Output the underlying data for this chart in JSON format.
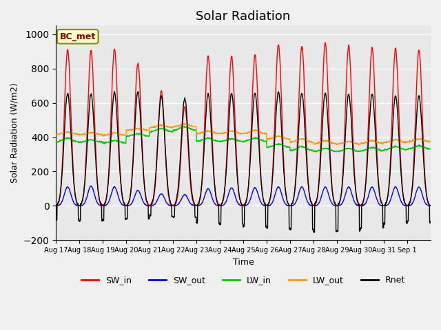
{
  "title": "Solar Radiation",
  "xlabel": "Time",
  "ylabel": "Solar Radiation (W/m2)",
  "ylim": [
    -200,
    1050
  ],
  "n_days": 16,
  "tick_labels": [
    "Aug 17",
    "Aug 18",
    "Aug 19",
    "Aug 20",
    "Aug 21",
    "Aug 22",
    "Aug 23",
    "Aug 24",
    "Aug 25",
    "Aug 26",
    "Aug 27",
    "Aug 28",
    "Aug 29",
    "Aug 30",
    "Aug 31",
    "Sep 1"
  ],
  "legend_labels": [
    "SW_in",
    "SW_out",
    "LW_in",
    "LW_out",
    "Rnet"
  ],
  "legend_colors": [
    "#ff0000",
    "#0000ff",
    "#00cc00",
    "#ff9900",
    "#000000"
  ],
  "station_label": "BC_met",
  "sw_in_peaks": [
    910,
    905,
    910,
    830,
    670,
    580,
    870,
    870,
    880,
    940,
    930,
    950,
    930,
    920,
    915,
    910
  ],
  "sw_out_peaks": [
    110,
    115,
    110,
    90,
    70,
    65,
    100,
    105,
    105,
    110,
    110,
    110,
    110,
    110,
    110,
    110
  ],
  "lw_in_day": [
    395,
    385,
    380,
    420,
    450,
    460,
    395,
    390,
    395,
    360,
    345,
    335,
    335,
    340,
    345,
    350
  ],
  "lw_in_night": [
    370,
    370,
    365,
    405,
    430,
    440,
    375,
    375,
    375,
    340,
    320,
    315,
    315,
    320,
    325,
    330
  ],
  "lw_out_day": [
    430,
    425,
    425,
    450,
    470,
    475,
    435,
    435,
    440,
    405,
    390,
    380,
    375,
    380,
    385,
    390
  ],
  "lw_out_night": [
    415,
    415,
    410,
    440,
    455,
    460,
    420,
    420,
    420,
    388,
    370,
    360,
    358,
    363,
    368,
    373
  ],
  "rnet_peaks": [
    655,
    650,
    660,
    665,
    640,
    625,
    650,
    655,
    660,
    665,
    655,
    655,
    650,
    650,
    640,
    640
  ],
  "rnet_night": [
    -85,
    -90,
    -80,
    -75,
    -60,
    -65,
    -100,
    -105,
    -120,
    -130,
    -135,
    -150,
    -145,
    -130,
    -100,
    -90
  ],
  "background_color": "#e8e8e8",
  "grid_color": "#ffffff",
  "title_fontsize": 13
}
